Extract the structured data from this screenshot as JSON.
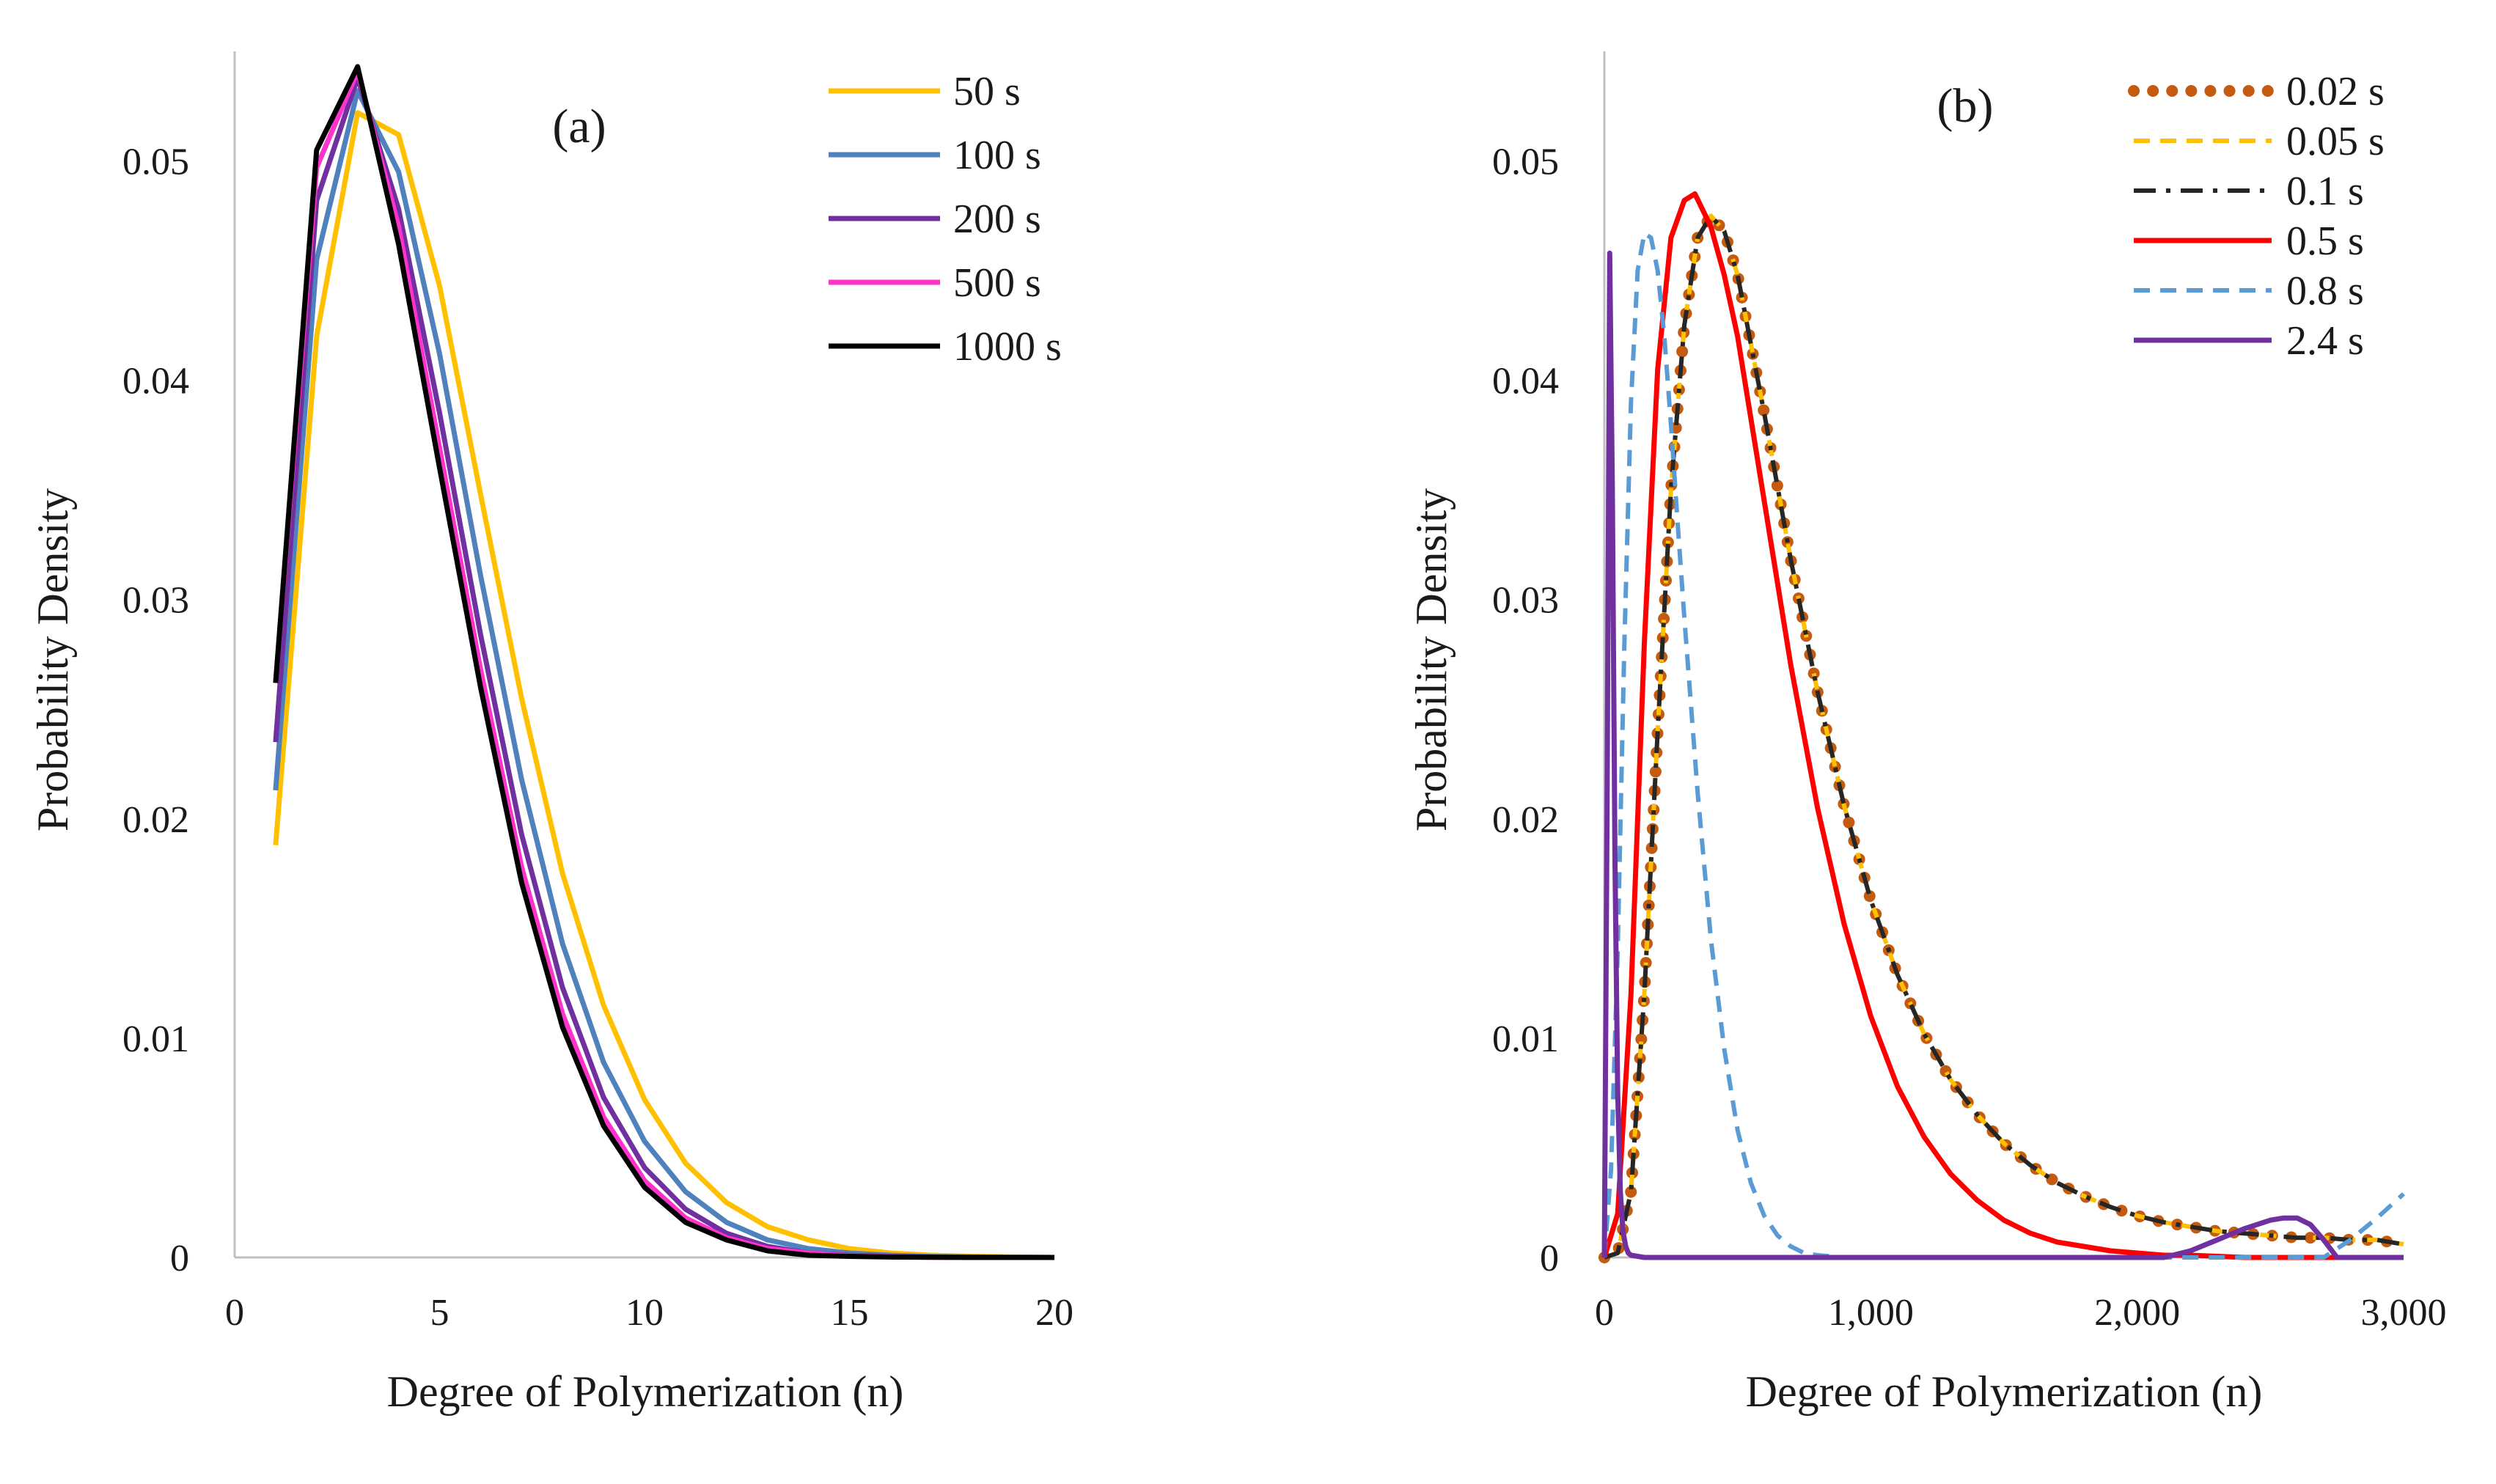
{
  "chart_data": [
    {
      "type": "line",
      "panel_label": "(a)",
      "xlabel": "Degree of Polymerization  (n)",
      "ylabel": "Probability  Density",
      "xlim": [
        0,
        20
      ],
      "ylim": [
        0,
        0.055
      ],
      "xticks": [
        0,
        5,
        10,
        15,
        20
      ],
      "xtick_labels": [
        "0",
        "5",
        "10",
        "15",
        "20"
      ],
      "yticks": [
        0,
        0.01,
        0.02,
        0.03,
        0.04,
        0.05
      ],
      "ytick_labels": [
        "0",
        "0.01",
        "0.02",
        "0.03",
        "0.04",
        "0.05"
      ],
      "grid": false,
      "legend_position": "top-right",
      "x": [
        1,
        2,
        3,
        4,
        5,
        6,
        7,
        8,
        9,
        10,
        11,
        12,
        13,
        14,
        15,
        16,
        17,
        18,
        19,
        20
      ],
      "series": [
        {
          "name": "50  s",
          "color": "#FFC000",
          "dash": "solid",
          "values": [
            0.0188,
            0.042,
            0.0522,
            0.0512,
            0.0443,
            0.0348,
            0.0255,
            0.0175,
            0.0115,
            0.0072,
            0.0043,
            0.0025,
            0.0014,
            0.0008,
            0.0004,
            0.0002,
            0.0001,
            5e-05,
            2e-05,
            0.0
          ]
        },
        {
          "name": "100 s",
          "color": "#4F81BD",
          "dash": "solid",
          "values": [
            0.0213,
            0.0455,
            0.0532,
            0.0495,
            0.0412,
            0.0311,
            0.0218,
            0.0143,
            0.0089,
            0.0053,
            0.003,
            0.0016,
            0.0008,
            0.0004,
            0.0002,
            0.0001,
            4e-05,
            2e-05,
            1e-05,
            0.0
          ]
        },
        {
          "name": "200 s",
          "color": "#7030A0",
          "dash": "solid",
          "values": [
            0.0235,
            0.0482,
            0.0538,
            0.0478,
            0.0385,
            0.0284,
            0.0193,
            0.0123,
            0.0073,
            0.0041,
            0.0022,
            0.0011,
            0.0005,
            0.0002,
            0.0001,
            4e-05,
            2e-05,
            1e-05,
            0.0,
            0.0
          ]
        },
        {
          "name": "500 s",
          "color": "#FF33CC",
          "dash": "solid",
          "values": [
            0.0262,
            0.0497,
            0.0541,
            0.047,
            0.0369,
            0.0268,
            0.0178,
            0.0111,
            0.0064,
            0.0035,
            0.0018,
            0.0009,
            0.0004,
            0.0002,
            7e-05,
            3e-05,
            1e-05,
            0.0,
            0.0,
            0.0
          ]
        },
        {
          "name": "1000 s",
          "color": "#000000",
          "dash": "solid",
          "values": [
            0.0262,
            0.0505,
            0.0543,
            0.0462,
            0.036,
            0.026,
            0.0171,
            0.0105,
            0.006,
            0.0032,
            0.0016,
            0.0008,
            0.0003,
            0.0001,
            5e-05,
            2e-05,
            1e-05,
            0.0,
            0.0,
            0.0
          ]
        }
      ]
    },
    {
      "type": "line",
      "panel_label": "(b)",
      "xlabel": "Degree of Polymerization  (n)",
      "ylabel": "Probability  Density",
      "xlim": [
        0,
        3000
      ],
      "ylim": [
        0,
        0.055
      ],
      "xticks": [
        0,
        1000,
        2000,
        3000
      ],
      "xtick_labels": [
        "0",
        "1,000",
        "2,000",
        "3,000"
      ],
      "yticks": [
        0,
        0.01,
        0.02,
        0.03,
        0.04,
        0.05
      ],
      "ytick_labels": [
        "0",
        "0.01",
        "0.02",
        "0.03",
        "0.04",
        "0.05"
      ],
      "grid": false,
      "legend_position": "top-right",
      "series": [
        {
          "name": "0.02 s",
          "color": "#C55A11",
          "dash": "dots",
          "x": [
            0,
            50,
            100,
            150,
            200,
            250,
            300,
            350,
            400,
            450,
            500,
            600,
            700,
            800,
            900,
            1000,
            1100,
            1200,
            1300,
            1400,
            1500,
            1600,
            1700,
            1800,
            1900,
            2000,
            2100,
            2200,
            2300,
            2400,
            2500,
            2600,
            2700,
            2800,
            2900,
            3000
          ],
          "values": [
            0.0,
            0.0002,
            0.003,
            0.012,
            0.024,
            0.035,
            0.0425,
            0.0465,
            0.0475,
            0.0468,
            0.0448,
            0.0385,
            0.0318,
            0.0258,
            0.0206,
            0.0163,
            0.0129,
            0.0102,
            0.0081,
            0.0065,
            0.0052,
            0.0042,
            0.0034,
            0.0028,
            0.0023,
            0.0019,
            0.0016,
            0.0014,
            0.0012,
            0.0011,
            0.001,
            0.0009,
            0.0009,
            0.0008,
            0.0008,
            0.0006
          ]
        },
        {
          "name": "0.05 s",
          "color": "#FFC000",
          "dash": "dashed",
          "x": [
            0,
            50,
            100,
            150,
            200,
            250,
            300,
            350,
            400,
            450,
            500,
            600,
            700,
            800,
            900,
            1000,
            1100,
            1200,
            1300,
            1400,
            1500,
            1600,
            1700,
            1800,
            1900,
            2000,
            2100,
            2200,
            2300,
            2400,
            2500,
            2600,
            2700,
            2800,
            2900,
            3000
          ],
          "values": [
            0.0,
            0.0002,
            0.003,
            0.012,
            0.024,
            0.035,
            0.0425,
            0.0465,
            0.0475,
            0.0468,
            0.0448,
            0.0385,
            0.0318,
            0.0258,
            0.0206,
            0.0163,
            0.0129,
            0.0102,
            0.0081,
            0.0065,
            0.0052,
            0.0042,
            0.0034,
            0.0028,
            0.0023,
            0.0019,
            0.0016,
            0.0014,
            0.0012,
            0.0011,
            0.001,
            0.0009,
            0.0009,
            0.0008,
            0.0008,
            0.0006
          ]
        },
        {
          "name": "0.1 s",
          "color": "#262626",
          "dash": "dashdot",
          "x": [
            0,
            50,
            100,
            150,
            200,
            250,
            300,
            350,
            400,
            450,
            500,
            600,
            700,
            800,
            900,
            1000,
            1100,
            1200,
            1300,
            1400,
            1500,
            1600,
            1700,
            1800,
            1900,
            2000,
            2100,
            2200,
            2300,
            2400,
            2500,
            2600,
            2700,
            2800,
            2900,
            3000
          ],
          "values": [
            0.0,
            0.0002,
            0.003,
            0.012,
            0.024,
            0.035,
            0.0425,
            0.0465,
            0.0475,
            0.0468,
            0.0448,
            0.0385,
            0.0318,
            0.0258,
            0.0206,
            0.0163,
            0.0129,
            0.0102,
            0.0081,
            0.0065,
            0.0052,
            0.0042,
            0.0034,
            0.0028,
            0.0023,
            0.0019,
            0.0016,
            0.0014,
            0.0012,
            0.0011,
            0.001,
            0.0009,
            0.0009,
            0.0008,
            0.0008,
            0.0006
          ]
        },
        {
          "name": "0.5 s",
          "color": "#FF0000",
          "dash": "solid",
          "x": [
            0,
            50,
            100,
            150,
            200,
            250,
            300,
            340,
            400,
            450,
            500,
            600,
            700,
            800,
            900,
            1000,
            1100,
            1200,
            1300,
            1400,
            1500,
            1600,
            1700,
            1800,
            1900,
            2000,
            2100,
            2200,
            2400,
            2600,
            2800,
            3000
          ],
          "values": [
            0.0,
            0.002,
            0.012,
            0.028,
            0.0405,
            0.0465,
            0.0482,
            0.0485,
            0.047,
            0.0448,
            0.042,
            0.0345,
            0.027,
            0.0205,
            0.0152,
            0.011,
            0.0078,
            0.0055,
            0.0038,
            0.0026,
            0.0017,
            0.0011,
            0.0007,
            0.0005,
            0.0003,
            0.0002,
            0.0001,
            0.0001,
            0.0,
            0.0,
            0.0,
            0.0
          ]
        },
        {
          "name": "0.8 s",
          "color": "#5B9BD5",
          "dash": "dashed",
          "x": [
            0,
            25,
            50,
            75,
            100,
            125,
            150,
            175,
            200,
            225,
            250,
            275,
            300,
            350,
            400,
            450,
            500,
            550,
            600,
            650,
            700,
            750,
            800,
            900,
            1000,
            1500,
            2000,
            2500,
            2700,
            2800,
            2900,
            3000
          ],
          "values": [
            0.0,
            0.004,
            0.014,
            0.028,
            0.039,
            0.045,
            0.0467,
            0.0465,
            0.045,
            0.042,
            0.038,
            0.0335,
            0.0292,
            0.0212,
            0.0145,
            0.0095,
            0.0058,
            0.0034,
            0.0019,
            0.001,
            0.0005,
            0.0002,
            0.0001,
            0.0,
            0.0,
            0.0,
            0.0,
            0.0,
            0.0,
            0.0008,
            0.0018,
            0.0029
          ]
        },
        {
          "name": "2.4 s",
          "color": "#7030A0",
          "dash": "solid",
          "x": [
            0,
            10,
            20,
            30,
            40,
            50,
            60,
            70,
            80,
            90,
            100,
            150,
            500,
            1000,
            1500,
            2000,
            2100,
            2200,
            2300,
            2400,
            2500,
            2550,
            2600,
            2650,
            2700,
            2750,
            3000
          ],
          "values": [
            0.0,
            0.02,
            0.0458,
            0.035,
            0.018,
            0.0075,
            0.003,
            0.0012,
            0.0005,
            0.0002,
            0.0001,
            0.0,
            0.0,
            0.0,
            0.0,
            0.0,
            0.0,
            0.0003,
            0.0008,
            0.0013,
            0.0017,
            0.0018,
            0.0018,
            0.0015,
            0.0008,
            0.0,
            0.0
          ]
        }
      ]
    }
  ]
}
